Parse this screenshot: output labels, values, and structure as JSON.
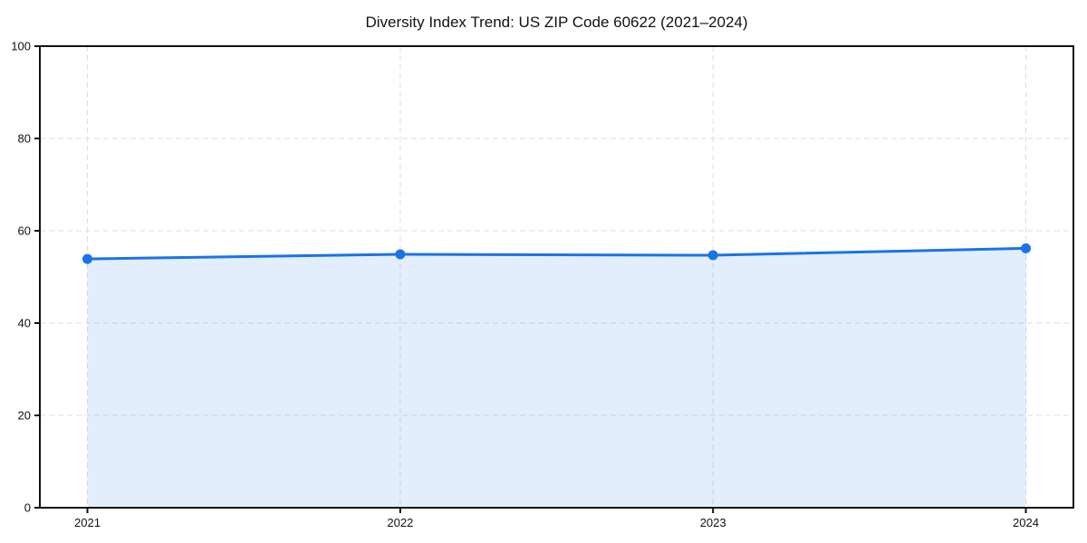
{
  "chart_data": {
    "type": "line",
    "title": "Diversity Index Trend: US ZIP Code 60622 (2021–2024)",
    "series_name": "Diversity Index",
    "x": [
      2021,
      2022,
      2023,
      2024
    ],
    "categories": [
      "2021",
      "2022",
      "2023",
      "2024"
    ],
    "values": [
      53.9,
      54.9,
      54.7,
      56.2
    ],
    "xlabel": "",
    "ylabel": "",
    "ylim": [
      0,
      100
    ],
    "yticks": [
      0,
      20,
      40,
      60,
      80,
      100
    ],
    "grid": "dashed-both-axes",
    "legend": "none",
    "area_fill": true,
    "marker": "circle",
    "colors": {
      "line": "#1a73e8",
      "marker": "#1a73e8",
      "area_fill": "rgba(26,115,232,0.12)",
      "grid": "#dddddd",
      "spine": "#111111",
      "text": "#111111",
      "background": "#ffffff"
    }
  }
}
